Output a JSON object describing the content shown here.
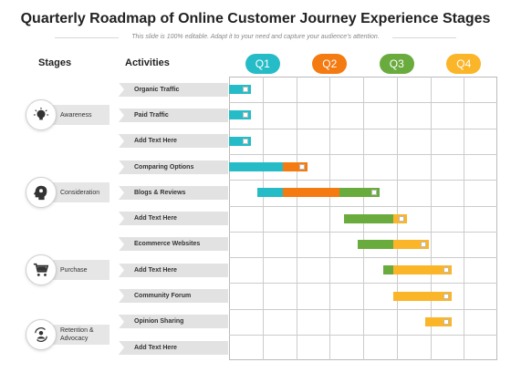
{
  "title": "Quarterly Roadmap of Online Customer Journey Experience Stages",
  "subtitle": "This slide is 100% editable. Adapt it to your need and capture your audience's attention.",
  "headers": {
    "stages": "Stages",
    "activities": "Activities"
  },
  "quarters": [
    {
      "label": "Q1",
      "color": "#26bcc7"
    },
    {
      "label": "Q2",
      "color": "#f47a12"
    },
    {
      "label": "Q3",
      "color": "#6aab3e"
    },
    {
      "label": "Q4",
      "color": "#fbb529"
    }
  ],
  "stages": [
    {
      "label": "Awareness",
      "icon": "head-lightbulb-icon"
    },
    {
      "label": "Consideration",
      "icon": "head-gears-icon"
    },
    {
      "label": "Purchase",
      "icon": "shopping-cart-icon"
    },
    {
      "label": "Retention & Advocacy",
      "icon": "user-cycle-icon"
    }
  ],
  "activities": [
    "Organic Traffic",
    "Paid Traffic",
    "Add Text Here",
    "Comparing Options",
    "Blogs & Reviews",
    "Add Text Here",
    "Ecommerce  Websites",
    "Add Text Here",
    "Community Forum",
    "Opinion Sharing",
    "Add Text Here"
  ],
  "gantt": [
    {
      "row": 0,
      "segments": [
        {
          "color": "#26bcc7",
          "from": 0.0,
          "to": 0.33
        }
      ],
      "marker": 0.33
    },
    {
      "row": 1,
      "segments": [
        {
          "color": "#26bcc7",
          "from": 0.0,
          "to": 0.33
        }
      ],
      "marker": 0.33
    },
    {
      "row": 2,
      "segments": [
        {
          "color": "#26bcc7",
          "from": 0.0,
          "to": 0.33
        }
      ],
      "marker": 0.33
    },
    {
      "row": 3,
      "segments": [
        {
          "color": "#26bcc7",
          "from": 0.0,
          "to": 0.8
        },
        {
          "color": "#f47a12",
          "from": 0.8,
          "to": 1.17
        }
      ],
      "marker": 1.17
    },
    {
      "row": 4,
      "segments": [
        {
          "color": "#26bcc7",
          "from": 0.42,
          "to": 0.8
        },
        {
          "color": "#f47a12",
          "from": 0.8,
          "to": 1.65
        },
        {
          "color": "#6aab3e",
          "from": 1.65,
          "to": 2.25
        }
      ],
      "marker": 2.25
    },
    {
      "row": 5,
      "segments": [
        {
          "color": "#6aab3e",
          "from": 1.72,
          "to": 2.45
        },
        {
          "color": "#fbb529",
          "from": 2.45,
          "to": 2.65
        }
      ],
      "marker": 2.65
    },
    {
      "row": 6,
      "segments": [
        {
          "color": "#6aab3e",
          "from": 1.92,
          "to": 2.45
        },
        {
          "color": "#fbb529",
          "from": 2.45,
          "to": 2.98
        }
      ],
      "marker": 2.98
    },
    {
      "row": 7,
      "segments": [
        {
          "color": "#6aab3e",
          "from": 2.3,
          "to": 2.45
        },
        {
          "color": "#fbb529",
          "from": 2.45,
          "to": 3.32
        }
      ],
      "marker": 3.32
    },
    {
      "row": 8,
      "segments": [
        {
          "color": "#fbb529",
          "from": 2.45,
          "to": 3.32
        }
      ],
      "marker": 3.32
    },
    {
      "row": 9,
      "segments": [
        {
          "color": "#fbb529",
          "from": 2.92,
          "to": 3.32
        }
      ],
      "marker": 3.32
    },
    {
      "row": 10,
      "segments": [],
      "marker": null
    }
  ]
}
